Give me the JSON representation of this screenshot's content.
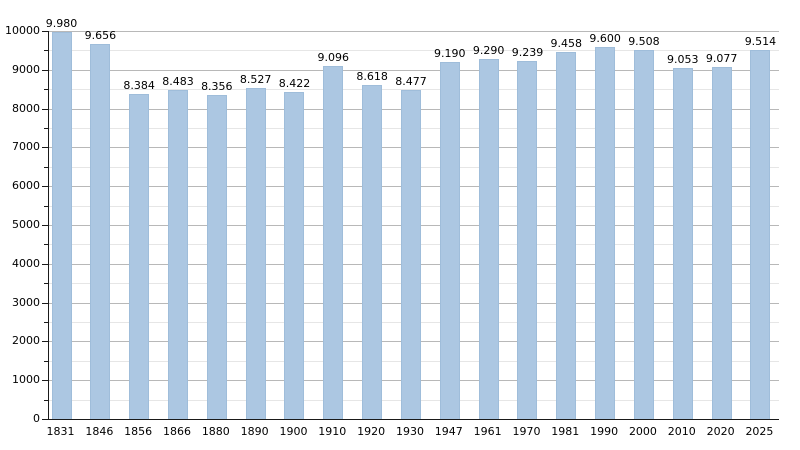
{
  "chart_data": {
    "type": "bar",
    "title": "",
    "xlabel": "",
    "ylabel": "",
    "categories": [
      "1831",
      "1846",
      "1856",
      "1866",
      "1880",
      "1890",
      "1900",
      "1910",
      "1920",
      "1930",
      "1947",
      "1961",
      "1970",
      "1981",
      "1990",
      "2000",
      "2010",
      "2020",
      "2025"
    ],
    "values": [
      9980,
      9656,
      8384,
      8483,
      8356,
      8527,
      8422,
      9096,
      8618,
      8477,
      9190,
      9290,
      9239,
      9458,
      9600,
      9508,
      9053,
      9077,
      9514
    ],
    "value_labels": [
      "9.980",
      "9.656",
      "8.384",
      "8.483",
      "8.356",
      "8.527",
      "8.422",
      "9.096",
      "8.618",
      "8.477",
      "9.190",
      "9.290",
      "9.239",
      "9.458",
      "9.600",
      "9.508",
      "9.053",
      "9.077",
      "9.514"
    ],
    "ylim": [
      0,
      10000
    ],
    "y_major_step": 1000,
    "y_minor_step": 500,
    "y_tick_labels": [
      "0",
      "1000",
      "2000",
      "3000",
      "4000",
      "5000",
      "6000",
      "7000",
      "8000",
      "9000",
      "10000"
    ],
    "grid": "on",
    "legend": "none",
    "colors": {
      "bar_fill": "#acc7e2",
      "bar_border": "#9fbdda",
      "grid_major": "#b8b8b8",
      "grid_minor": "#e6e6e6",
      "axis": "#1a1a1a",
      "text": "#000000",
      "background": "#ffffff"
    }
  }
}
